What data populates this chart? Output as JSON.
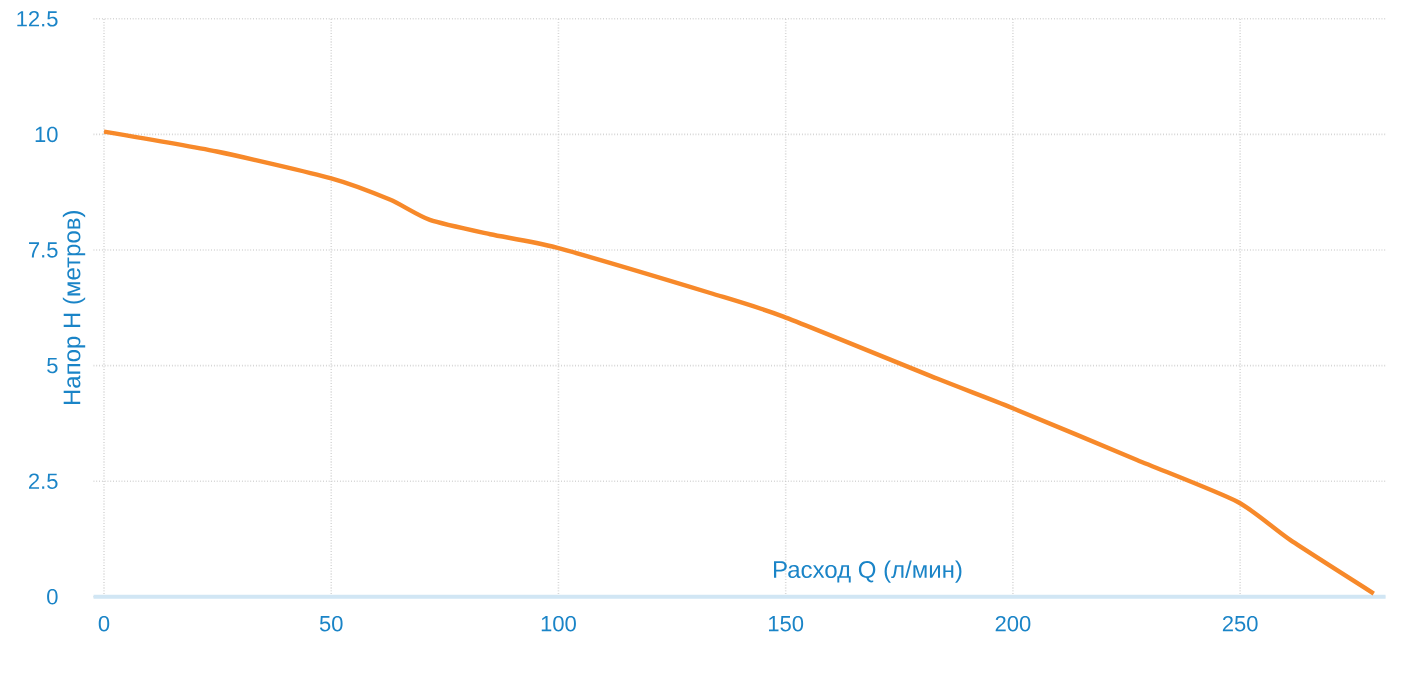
{
  "chart_data": {
    "type": "line",
    "xlabel": "Расход Q (л/мин)",
    "ylabel": "Напор H (метров)",
    "x": [
      0,
      24.8,
      50,
      62.9,
      71.7,
      85,
      99.6,
      133.4,
      149.5,
      183.3,
      199.7,
      227.3,
      249.3,
      261,
      279.4
    ],
    "series": [
      {
        "color": "#f7892a",
        "values": [
          10.06,
          9.63,
          9.05,
          8.59,
          8.15,
          7.84,
          7.55,
          6.57,
          6.06,
          4.72,
          4.09,
          2.96,
          2.06,
          1.23,
          0.07
        ]
      }
    ],
    "xlim": [
      -2.3,
      282
    ],
    "ylim": [
      0,
      12.5
    ],
    "xticks": [
      0,
      50,
      100,
      150,
      200,
      250
    ],
    "yticks": [
      0,
      2.5,
      5,
      7.5,
      10,
      12.5
    ],
    "grid": true,
    "marker": "none",
    "line_style": "solid"
  }
}
